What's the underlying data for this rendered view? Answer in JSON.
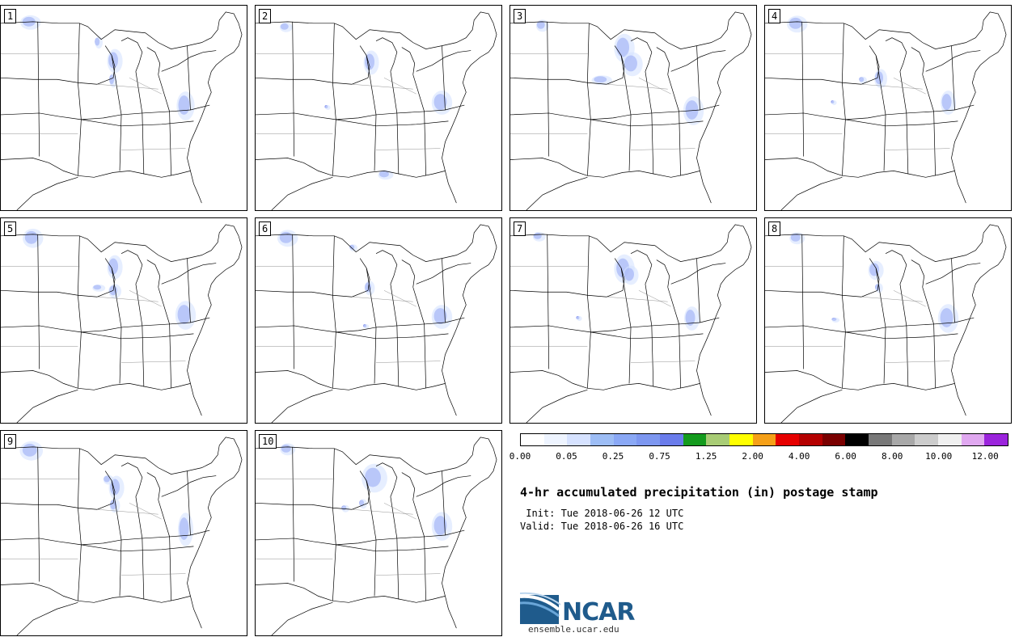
{
  "title": "4-hr accumulated precipitation (in) postage stamp",
  "init_text": " Init: Tue 2018-06-26 12 UTC",
  "valid_text": "Valid: Tue 2018-06-26 16 UTC",
  "logo": {
    "wordmark": "NCAR",
    "url": "ensemble.ucar.edu",
    "color": "#1f5b8c"
  },
  "members": [
    "1",
    "2",
    "3",
    "4",
    "5",
    "6",
    "7",
    "8",
    "9",
    "10"
  ],
  "colorbar": {
    "colors": [
      "#ffffff",
      "#eef4ff",
      "#d6e2ff",
      "#9dbdf5",
      "#8aa8f5",
      "#7d97f0",
      "#6a7ceb",
      "#149b1e",
      "#a8cc75",
      "#ffff00",
      "#f5a018",
      "#e60000",
      "#b40000",
      "#7a0000",
      "#000000",
      "#787878",
      "#a8a8a8",
      "#cccccc",
      "#f0f0f0",
      "#e0a8f0",
      "#9b24dc"
    ],
    "tick_labels": [
      "0.00",
      "0.05",
      "0.25",
      "0.75",
      "1.25",
      "2.00",
      "4.00",
      "6.00",
      "8.00",
      "10.00",
      "12.00"
    ],
    "tick_values": [
      0.0,
      0.05,
      0.25,
      0.75,
      1.25,
      2.0,
      4.0,
      6.0,
      8.0,
      10.0,
      12.0
    ]
  }
}
